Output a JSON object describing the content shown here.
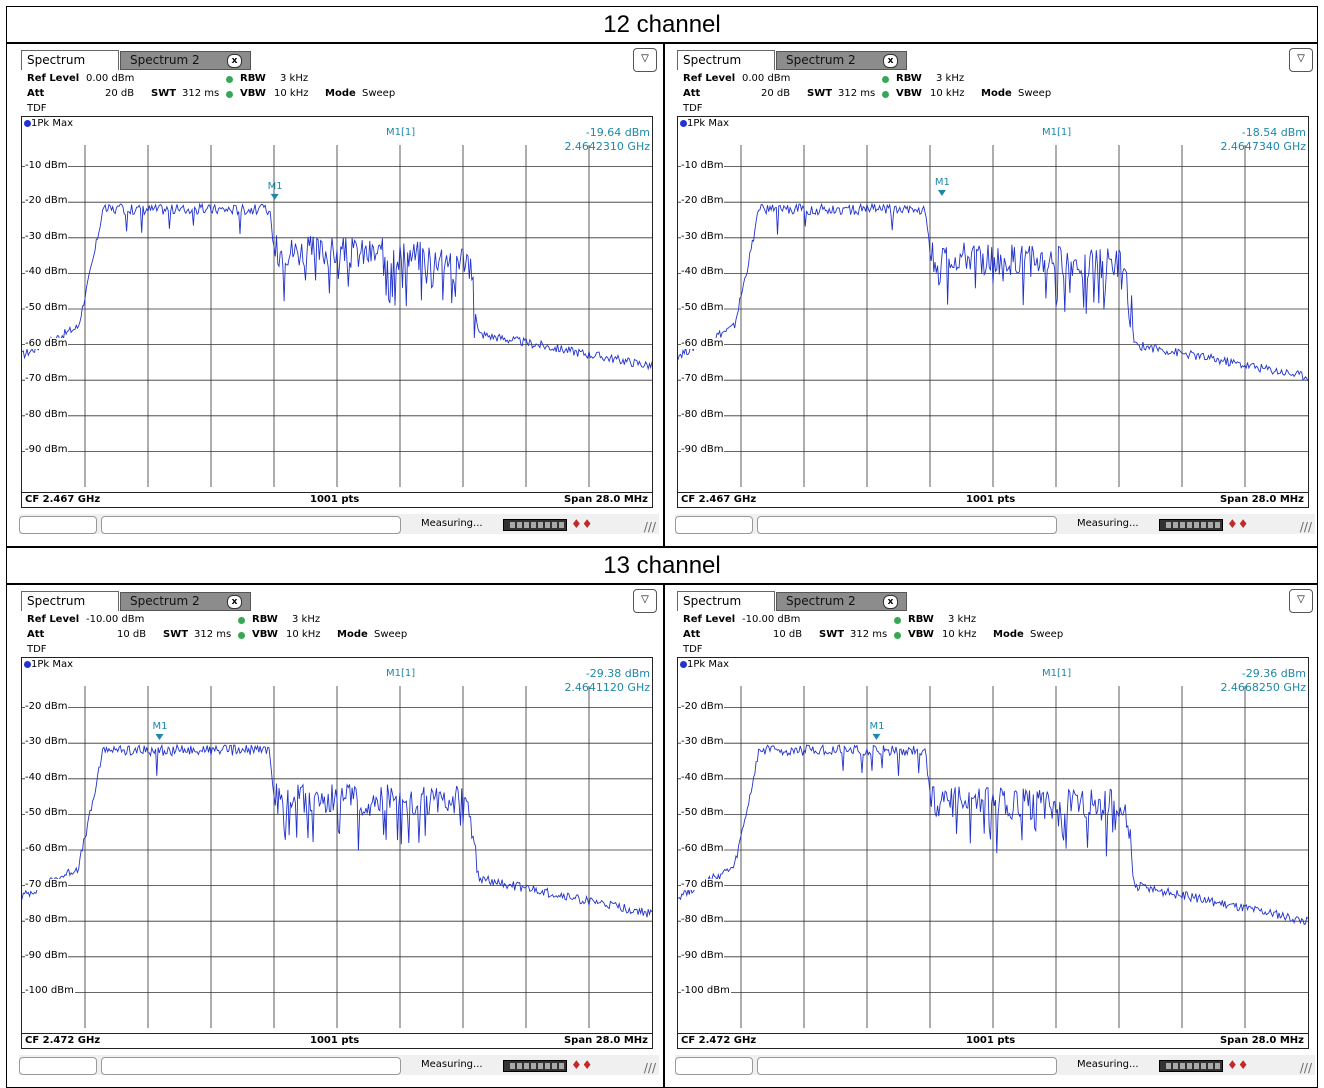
{
  "sections": [
    {
      "title": "12 channel",
      "panels": [
        {
          "tab_active": "Spectrum",
          "tab_inactive": "Spectrum 2",
          "tab_close": "x",
          "menu_icon": "menu-icon",
          "ref_level_label": "Ref Level",
          "ref_level": "0.00 dBm",
          "att_label": "Att",
          "att": "20 dB",
          "swt_label": "SWT",
          "swt": "312 ms",
          "rbw_label": "RBW",
          "rbw": "3 kHz",
          "vbw_label": "VBW",
          "vbw": "10 kHz",
          "mode_label": "Mode",
          "mode": "Sweep",
          "tdf": "TDF",
          "trace": "1Pk Max",
          "marker_name": "M1[1]",
          "marker_level": "-19.64 dBm",
          "marker_freq": "2.4642310 GHz",
          "marker_label": "M1",
          "cf": "CF 2.467 GHz",
          "pts": "1001 pts",
          "span": "Span 28.0 MHz",
          "status": "Measuring...",
          "y_top_dbm": 0,
          "y_labels": [
            "-10 dBm",
            "-20 dBm",
            "-30 dBm",
            "-40 dBm",
            "-50 dBm",
            "-60 dBm",
            "-70 dBm",
            "-80 dBm",
            "-90 dBm"
          ],
          "chart_data": {
            "type": "line",
            "x_range_mhz": [
              -14,
              14
            ],
            "ylim": [
              -100,
              0
            ],
            "segments": [
              {
                "x": -14,
                "y": -63
              },
              {
                "x": -11.5,
                "y": -55
              },
              {
                "x": -10.8,
                "y": -35
              },
              {
                "x": -10.4,
                "y": -22
              },
              {
                "x": -3.0,
                "y": -22
              },
              {
                "x": -2.7,
                "y": -38
              },
              {
                "x": 5.8,
                "y": -40
              },
              {
                "x": 6.3,
                "y": -57
              },
              {
                "x": 14,
                "y": -66
              }
            ],
            "marker": {
              "x_offset_mhz": -2.77,
              "y": -19.64
            }
          }
        },
        {
          "tab_active": "Spectrum",
          "tab_inactive": "Spectrum 2",
          "tab_close": "x",
          "menu_icon": "menu-icon",
          "ref_level_label": "Ref Level",
          "ref_level": "0.00 dBm",
          "att_label": "Att",
          "att": "20 dB",
          "swt_label": "SWT",
          "swt": "312 ms",
          "rbw_label": "RBW",
          "rbw": "3 kHz",
          "vbw_label": "VBW",
          "vbw": "10 kHz",
          "mode_label": "Mode",
          "mode": "Sweep",
          "tdf": "TDF",
          "trace": "1Pk Max",
          "marker_name": "M1[1]",
          "marker_level": "-18.54 dBm",
          "marker_freq": "2.4647340 GHz",
          "marker_label": "M1",
          "cf": "CF 2.467 GHz",
          "pts": "1001 pts",
          "span": "Span 28.0 MHz",
          "status": "Measuring...",
          "y_top_dbm": 0,
          "y_labels": [
            "-10 dBm",
            "-20 dBm",
            "-30 dBm",
            "-40 dBm",
            "-50 dBm",
            "-60 dBm",
            "-70 dBm",
            "-80 dBm",
            "-90 dBm"
          ],
          "chart_data": {
            "type": "line",
            "x_range_mhz": [
              -14,
              14
            ],
            "ylim": [
              -100,
              0
            ],
            "segments": [
              {
                "x": -14,
                "y": -63
              },
              {
                "x": -11.5,
                "y": -55
              },
              {
                "x": -10.8,
                "y": -35
              },
              {
                "x": -10.4,
                "y": -22
              },
              {
                "x": -3.0,
                "y": -22
              },
              {
                "x": -2.7,
                "y": -40
              },
              {
                "x": 5.8,
                "y": -42
              },
              {
                "x": 6.3,
                "y": -60
              },
              {
                "x": 14,
                "y": -69
              }
            ],
            "marker": {
              "x_offset_mhz": -2.27,
              "y": -18.54
            }
          }
        }
      ]
    },
    {
      "title": "13 channel",
      "panels": [
        {
          "tab_active": "Spectrum",
          "tab_inactive": "Spectrum 2",
          "tab_close": "x",
          "menu_icon": "menu-icon",
          "ref_level_label": "Ref Level",
          "ref_level": "-10.00 dBm",
          "att_label": "Att",
          "att": "10 dB",
          "swt_label": "SWT",
          "swt": "312 ms",
          "rbw_label": "RBW",
          "rbw": "3 kHz",
          "vbw_label": "VBW",
          "vbw": "10 kHz",
          "mode_label": "Mode",
          "mode": "Sweep",
          "tdf": "TDF",
          "trace": "1Pk Max",
          "marker_name": "M1[1]",
          "marker_level": "-29.38 dBm",
          "marker_freq": "2.4641120 GHz",
          "marker_label": "M1",
          "cf": "CF 2.472 GHz",
          "pts": "1001 pts",
          "span": "Span 28.0 MHz",
          "status": "Measuring...",
          "y_top_dbm": -10,
          "y_labels": [
            "-20 dBm",
            "-30 dBm",
            "-40 dBm",
            "-50 dBm",
            "-60 dBm",
            "-70 dBm",
            "-80 dBm",
            "-90 dBm",
            "-100 dBm"
          ],
          "chart_data": {
            "type": "line",
            "x_range_mhz": [
              -14,
              14
            ],
            "ylim": [
              -110,
              -10
            ],
            "segments": [
              {
                "x": -14,
                "y": -73
              },
              {
                "x": -11.5,
                "y": -65
              },
              {
                "x": -10.8,
                "y": -45
              },
              {
                "x": -10.4,
                "y": -32
              },
              {
                "x": -3.0,
                "y": -32
              },
              {
                "x": -2.7,
                "y": -50
              },
              {
                "x": 5.8,
                "y": -51
              },
              {
                "x": 6.3,
                "y": -68
              },
              {
                "x": 14,
                "y": -78
              }
            ],
            "marker": {
              "x_offset_mhz": -7.89,
              "y": -29.38
            }
          }
        },
        {
          "tab_active": "Spectrum",
          "tab_inactive": "Spectrum 2",
          "tab_close": "x",
          "menu_icon": "menu-icon",
          "ref_level_label": "Ref Level",
          "ref_level": "-10.00 dBm",
          "att_label": "Att",
          "att": "10 dB",
          "swt_label": "SWT",
          "swt": "312 ms",
          "rbw_label": "RBW",
          "rbw": "3 kHz",
          "vbw_label": "VBW",
          "vbw": "10 kHz",
          "mode_label": "Mode",
          "mode": "Sweep",
          "tdf": "TDF",
          "trace": "1Pk Max",
          "marker_name": "M1[1]",
          "marker_level": "-29.36 dBm",
          "marker_freq": "2.4668250 GHz",
          "marker_label": "M1",
          "cf": "CF 2.472 GHz",
          "pts": "1001 pts",
          "span": "Span 28.0 MHz",
          "status": "Measuring...",
          "y_top_dbm": -10,
          "y_labels": [
            "-20 dBm",
            "-30 dBm",
            "-40 dBm",
            "-50 dBm",
            "-60 dBm",
            "-70 dBm",
            "-80 dBm",
            "-90 dBm",
            "-100 dBm"
          ],
          "chart_data": {
            "type": "line",
            "x_range_mhz": [
              -14,
              14
            ],
            "ylim": [
              -110,
              -10
            ],
            "segments": [
              {
                "x": -14,
                "y": -73
              },
              {
                "x": -11.5,
                "y": -65
              },
              {
                "x": -10.8,
                "y": -45
              },
              {
                "x": -10.4,
                "y": -32
              },
              {
                "x": -3.0,
                "y": -32
              },
              {
                "x": -2.7,
                "y": -51
              },
              {
                "x": 5.8,
                "y": -52
              },
              {
                "x": 6.3,
                "y": -70
              },
              {
                "x": 14,
                "y": -80
              }
            ],
            "marker": {
              "x_offset_mhz": -5.18,
              "y": -29.36
            }
          }
        }
      ]
    }
  ]
}
